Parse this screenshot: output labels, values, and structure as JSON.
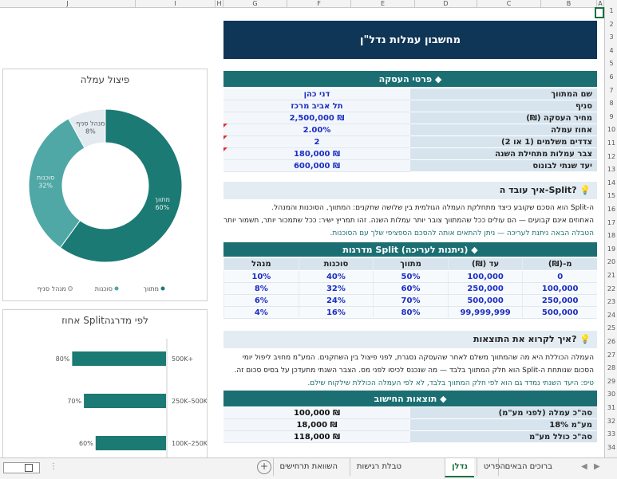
{
  "columns": [
    "J",
    "I",
    "H",
    "G",
    "F",
    "E",
    "D",
    "C",
    "B",
    "A"
  ],
  "rows": [
    "1",
    "2",
    "3",
    "4",
    "5",
    "6",
    "7",
    "8",
    "9",
    "10",
    "11",
    "12",
    "13",
    "14",
    "15",
    "16",
    "17",
    "18",
    "19",
    "20",
    "21",
    "22",
    "23",
    "24",
    "25",
    "26",
    "27",
    "28",
    "29",
    "30",
    "31",
    "32",
    "33",
    "34"
  ],
  "title": "מחשבון עמלות נדל\"ן",
  "deal": {
    "header": "פרטי העסקה ◆",
    "rows": [
      {
        "label": "שם המתווך",
        "value": "דני כהן"
      },
      {
        "label": "סניף",
        "value": "תל אביב מרכז"
      },
      {
        "label": "מחיר העסקה (₪)",
        "value": "₪ 2,500,000"
      },
      {
        "label": "אחוז עמלה",
        "value": "2.00%"
      },
      {
        "label": "צדדים משלמים (1 או 2)",
        "value": "2"
      },
      {
        "label": "צבר עמלות מתחילת השנה",
        "value": "₪ 180,000"
      },
      {
        "label": "יעד שנתי לבונוס",
        "value": "₪ 600,000"
      }
    ]
  },
  "split_info": {
    "header": "?Split-איך עובד ה",
    "lines": [
      "ה-Split הוא הסכם שקובע כיצד מתחלקת העמלה הגולמית בין שלושה שחקנים: המתווך, הסוכנות והמנהל.",
      "האחוזים אינם קבועים — הם עולים ככל שהמתווך צובר יותר עמלות השנה. זהו תמריץ ישיר: ככל שתמכור יותר, תשמור יותר",
      "הטבלה הבאה ניתנת לעריכה — ניתן להתאים אותה להסכם הספציפי שלך עם הסוכנות."
    ]
  },
  "tiers": {
    "header": "מדרגות Split (ניתנות לעריכה) ◆",
    "columns": [
      "מ-(₪)",
      "עד (₪)",
      "מתווך",
      "סוכנות",
      "מנהל"
    ],
    "rows": [
      [
        "0",
        "100,000",
        "50%",
        "40%",
        "10%"
      ],
      [
        "100,000",
        "250,000",
        "60%",
        "32%",
        "8%"
      ],
      [
        "250,000",
        "500,000",
        "70%",
        "24%",
        "6%"
      ],
      [
        "500,000",
        "99,999,999",
        "80%",
        "16%",
        "4%"
      ]
    ]
  },
  "results_info": {
    "header": "?איך לקרוא את התוצאות",
    "lines": [
      "העמלה הכוללת היא מה שהמתווך משלם לאחר שהעסקה נסגרת, לפני פיצול בין השחקנים. המע\"מ מחויב ליפול יומי",
      "הסכום שנותחת ה-Split הוא חלק המתווך בלבד — מה שנכנס לכיסו לפני מס. הצבר השנתי מתעדכן על בסיס סכום זה.",
      "טיפ: היעד השנתי נמדד גם הוא לפי חלק המתווך בלבד, לא לפי העמלה הכוללת שילקוח שילם."
    ]
  },
  "results": {
    "header": "תוצאות החישוב ◆",
    "rows": [
      {
        "label": "סה\"כ עמלה (לפני מע\"מ)",
        "value": "₪ 100,000"
      },
      {
        "label": "מע\"מ 18%",
        "value": "₪ 18,000"
      },
      {
        "label": "סה\"כ כולל מע\"מ",
        "value": "₪ 118,000"
      }
    ]
  },
  "pie_chart": {
    "title": "פיצול עמלה",
    "chart_data": {
      "type": "pie",
      "title": "פיצול עמלה",
      "categories": [
        "מתווך",
        "סוכנות",
        "מנהל סניף"
      ],
      "values": [
        60,
        32,
        8
      ],
      "labels": [
        "60%",
        "32%",
        "8%"
      ],
      "colors": [
        "#1b7a73",
        "#4fa8a6",
        "#e3eaf0"
      ],
      "legend": "bottom"
    }
  },
  "bar_chart": {
    "title": "אחוז Splitלפי מדרגה",
    "chart_data": {
      "type": "bar",
      "title": "אחוז Splitלפי מדרגה",
      "categories": [
        "500K+",
        "250K–500K",
        "100K–250K"
      ],
      "values": [
        80,
        70,
        60
      ],
      "labels": [
        "80%",
        "70%",
        "60%"
      ],
      "color": "#1b7a73",
      "xlim": [
        0,
        100
      ]
    }
  },
  "tabs": [
    "ברוכים הבאים",
    "הפריט",
    "נדלן",
    "טבלת רגישות",
    "השוואת תרחישים"
  ],
  "active_tab": "נדלן"
}
